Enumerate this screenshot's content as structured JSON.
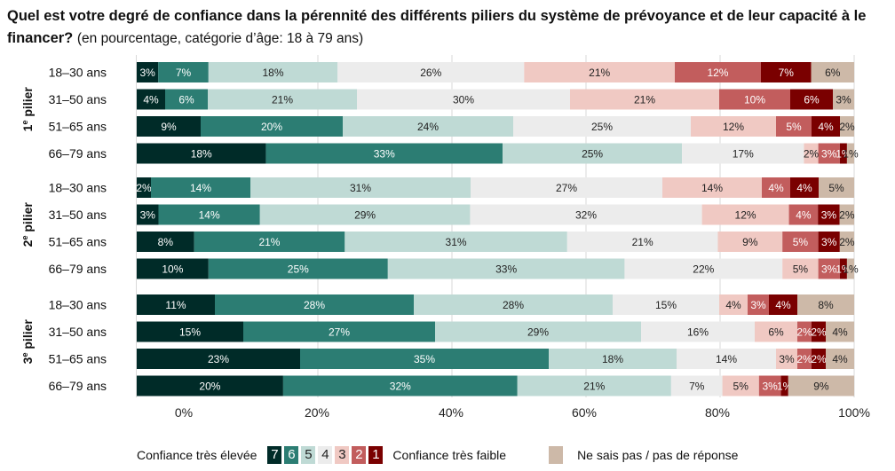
{
  "title": {
    "main": "Quel est votre degré de confiance dans la pérennité des différents piliers du système de prévoyance et de leur capacité à le financer?",
    "subtitle": "(en pourcentage, catégorie d’âge: 18 à 79 ans)"
  },
  "legend": {
    "left_label": "Confiance très élevée",
    "right_label": "Confiance très faible",
    "dk_label": "Ne sais pas / pas de réponse",
    "levels": [
      "7",
      "6",
      "5",
      "4",
      "3",
      "2",
      "1"
    ]
  },
  "colors": {
    "7": "#002b28",
    "6": "#2c7d73",
    "5": "#bfdad5",
    "4": "#ececec",
    "3": "#f0c9c3",
    "2": "#c25d5d",
    "1": "#7a0000",
    "dk": "#cdb9a8"
  },
  "chart_data": {
    "type": "bar",
    "orientation": "horizontal-stacked-100",
    "title": "Quel est votre degré de confiance dans la pérennité des différents piliers du système de prévoyance et de leur capacité à le financer? (en pourcentage, catégorie d’âge: 18 à 79 ans)",
    "xlabel": "",
    "ylabel": "",
    "xlim": [
      0,
      100
    ],
    "x_ticks": [
      "0%",
      "20%",
      "40%",
      "60%",
      "80%",
      "100%"
    ],
    "grid": true,
    "legend_position": "bottom",
    "series_names": [
      "7",
      "6",
      "5",
      "4",
      "3",
      "2",
      "1",
      "Ne sais pas / pas de réponse"
    ],
    "groups": [
      {
        "name": "1e pilier",
        "rows": [
          {
            "label": "18–30 ans",
            "values": [
              3,
              7,
              18,
              26,
              21,
              12,
              7,
              6
            ]
          },
          {
            "label": "31–50 ans",
            "values": [
              4,
              6,
              21,
              30,
              21,
              10,
              6,
              3
            ]
          },
          {
            "label": "51–65 ans",
            "values": [
              9,
              20,
              24,
              25,
              12,
              5,
              4,
              2
            ]
          },
          {
            "label": "66–79 ans",
            "values": [
              18,
              33,
              25,
              17,
              2,
              3,
              1,
              1
            ]
          }
        ]
      },
      {
        "name": "2e pilier",
        "rows": [
          {
            "label": "18–30 ans",
            "values": [
              2,
              14,
              31,
              27,
              14,
              4,
              4,
              5
            ]
          },
          {
            "label": "31–50 ans",
            "values": [
              3,
              14,
              29,
              32,
              12,
              4,
              3,
              2
            ]
          },
          {
            "label": "51–65 ans",
            "values": [
              8,
              21,
              31,
              21,
              9,
              5,
              3,
              2
            ]
          },
          {
            "label": "66–79 ans",
            "values": [
              10,
              25,
              33,
              22,
              5,
              3,
              1,
              1
            ]
          }
        ]
      },
      {
        "name": "3e pilier",
        "rows": [
          {
            "label": "18–30 ans",
            "values": [
              11,
              28,
              28,
              15,
              4,
              3,
              4,
              8
            ]
          },
          {
            "label": "31–50 ans",
            "values": [
              15,
              27,
              29,
              16,
              6,
              2,
              2,
              4
            ]
          },
          {
            "label": "51–65 ans",
            "values": [
              23,
              35,
              18,
              14,
              3,
              2,
              2,
              4
            ]
          },
          {
            "label": "66–79 ans",
            "values": [
              20,
              32,
              21,
              7,
              5,
              3,
              1,
              9
            ]
          }
        ]
      }
    ]
  }
}
